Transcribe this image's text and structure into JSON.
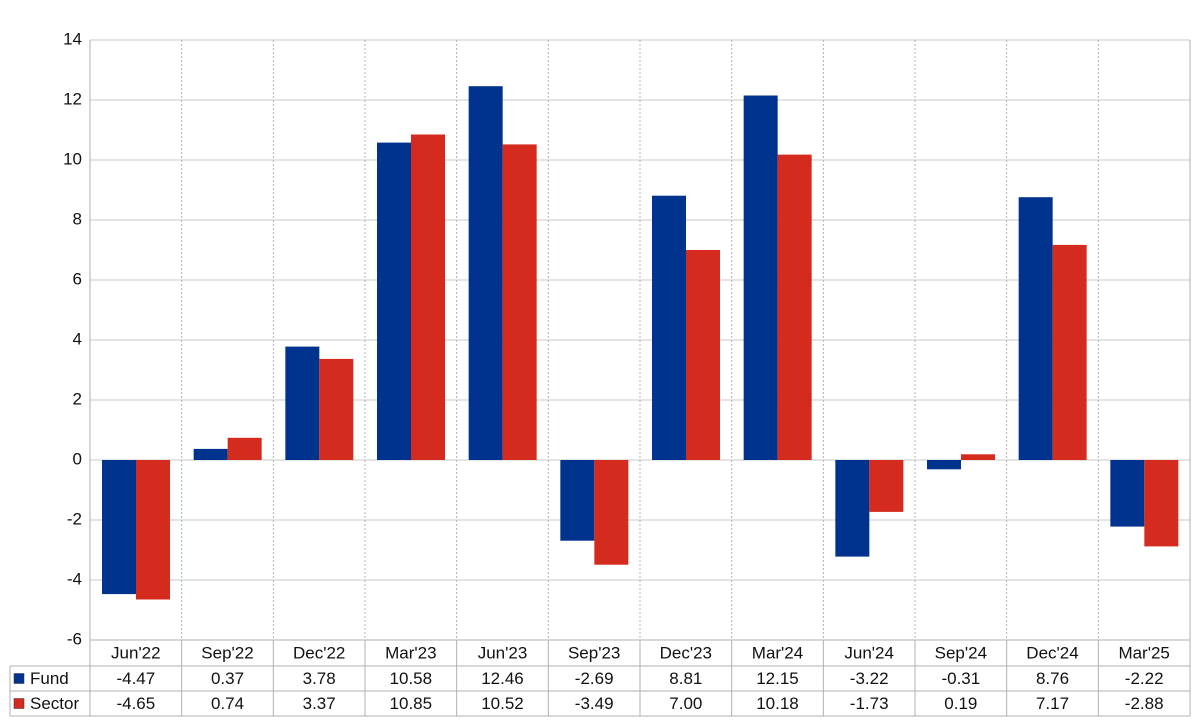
{
  "chart_data": {
    "type": "bar",
    "categories": [
      "Jun'22",
      "Sep'22",
      "Dec'22",
      "Mar'23",
      "Jun'23",
      "Sep'23",
      "Dec'23",
      "Mar'24",
      "Jun'24",
      "Sep'24",
      "Dec'24",
      "Mar'25"
    ],
    "series": [
      {
        "name": "Fund",
        "color": "#00338d",
        "values": [
          -4.47,
          0.37,
          3.78,
          10.58,
          12.46,
          -2.69,
          8.81,
          12.15,
          -3.22,
          -0.31,
          8.76,
          -2.22
        ],
        "value_labels": [
          "-4.47",
          "0.37",
          "3.78",
          "10.58",
          "12.46",
          "-2.69",
          "8.81",
          "12.15",
          "-3.22",
          "-0.31",
          "8.76",
          "-2.22"
        ]
      },
      {
        "name": "Sector",
        "color": "#d52b1e",
        "values": [
          -4.65,
          0.74,
          3.37,
          10.85,
          10.52,
          -3.49,
          7.0,
          10.18,
          -1.73,
          0.19,
          7.17,
          -2.88
        ],
        "value_labels": [
          "-4.65",
          "0.74",
          "3.37",
          "10.85",
          "10.52",
          "-3.49",
          "7.00",
          "10.18",
          "-1.73",
          "0.19",
          "7.17",
          "-2.88"
        ]
      }
    ],
    "ylim": [
      -6,
      14
    ],
    "yticks": [
      -6,
      -4,
      -2,
      0,
      2,
      4,
      6,
      8,
      10,
      12,
      14
    ],
    "grid": true,
    "negative_label_color": "#e00000"
  }
}
